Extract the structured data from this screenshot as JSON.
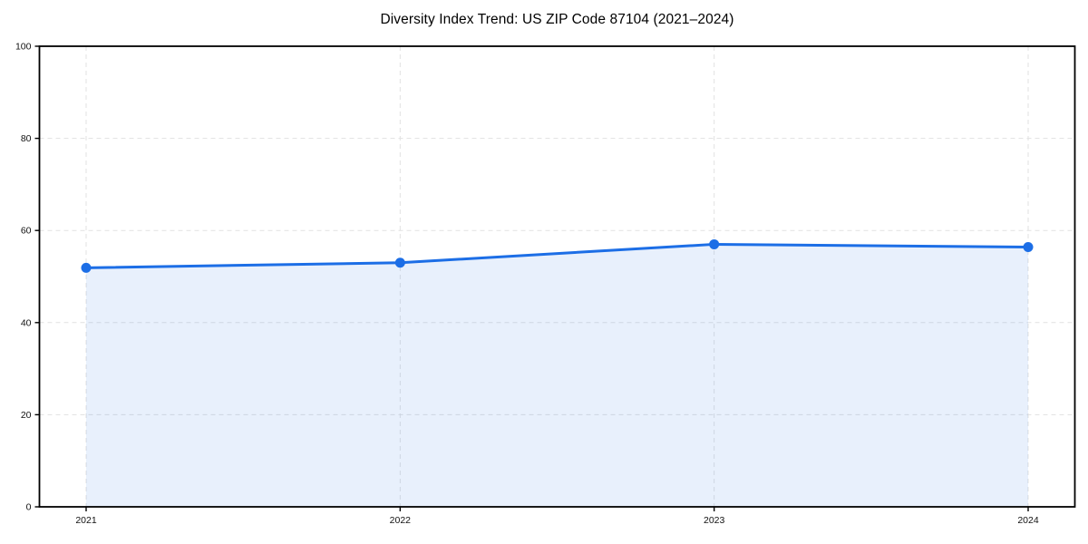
{
  "chart_data": {
    "type": "line",
    "title": "Diversity Index Trend: US ZIP Code 87104 (2021–2024)",
    "categories": [
      "2021",
      "2022",
      "2023",
      "2024"
    ],
    "values": [
      51.9,
      53.0,
      57.0,
      56.4
    ],
    "xlabel": "",
    "ylabel": "",
    "ylim": [
      0,
      100
    ],
    "yticks": [
      0,
      20,
      40,
      60,
      80,
      100
    ],
    "grid": "dashed",
    "legend": "none",
    "area_fill": true,
    "marker": "circle",
    "colors": {
      "line": "#1c6ee6",
      "fill": "#1c6ee6",
      "fill_opacity": 0.1,
      "grid": "#e1e1e1",
      "axis": "#000000",
      "tick_text": "#111111",
      "background": "#ffffff"
    }
  }
}
